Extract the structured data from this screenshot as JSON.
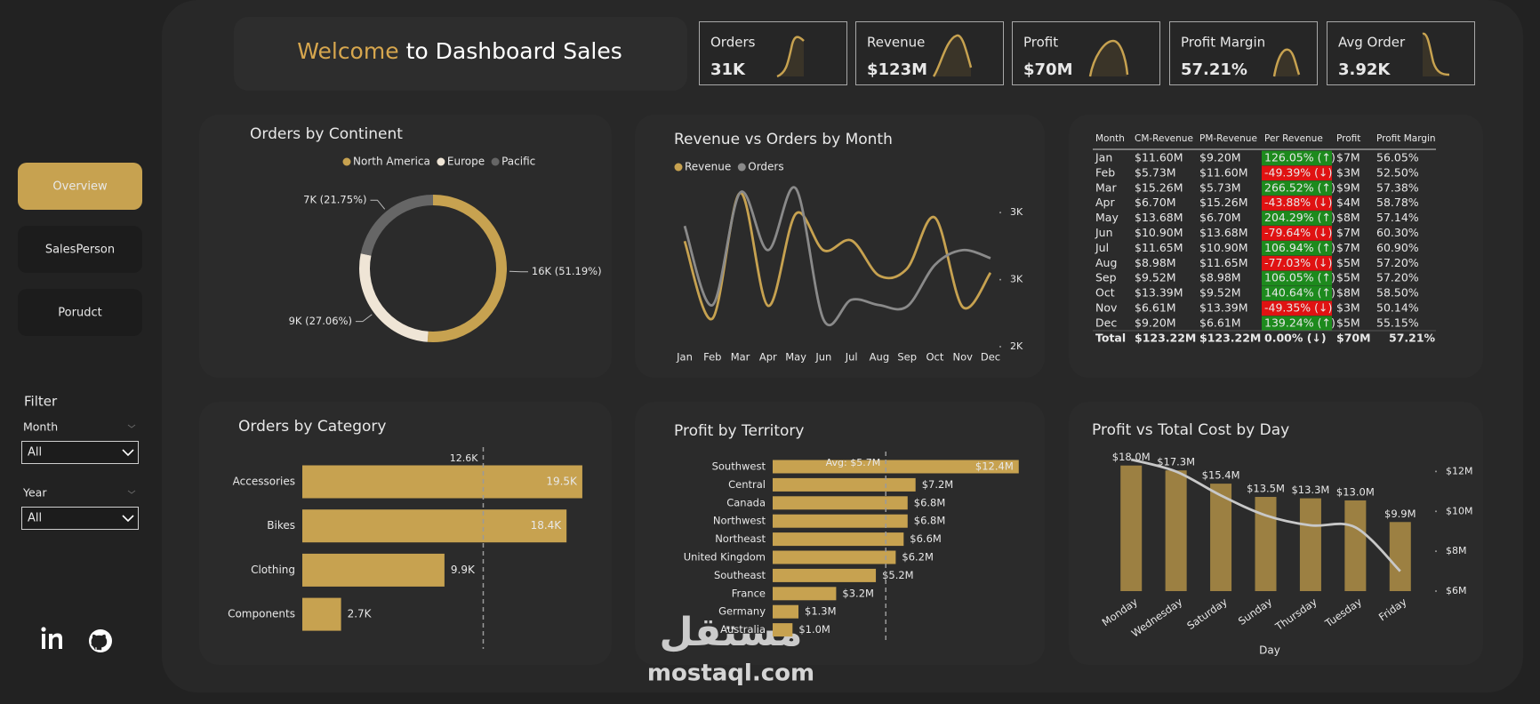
{
  "header": {
    "title_accent": "Welcome",
    "title_rest": "to Dashboard Sales"
  },
  "kpis": [
    {
      "label": "Orders",
      "value": "31K"
    },
    {
      "label": "Revenue",
      "value": "$123M"
    },
    {
      "label": "Profit",
      "value": "$70M"
    },
    {
      "label": "Profit Margin",
      "value": "57.21%"
    },
    {
      "label": "Avg Order",
      "value": "3.92K"
    }
  ],
  "nav": [
    "Overview",
    "SalesPerson",
    "Porudct"
  ],
  "filter": {
    "title": "Filter",
    "fields": [
      {
        "label": "Month",
        "selected": "All"
      },
      {
        "label": "Year",
        "selected": "All"
      }
    ]
  },
  "chart_data": [
    {
      "type": "pie",
      "donut": true,
      "title": "Orders by Continent",
      "categories": [
        "North America",
        "Europe",
        "Pacific"
      ],
      "values": [
        51.19,
        27.06,
        21.75
      ],
      "value_labels": [
        "16K (51.19%)",
        "9K (27.06%)",
        "7K (21.75%)"
      ],
      "colors": [
        "#c7a250",
        "#efe5d6",
        "#666666"
      ],
      "legend": "top"
    },
    {
      "type": "line",
      "title": "Revenue vs Orders by Month",
      "categories": [
        "Jan",
        "Feb",
        "Mar",
        "Apr",
        "May",
        "Jun",
        "Jul",
        "Aug",
        "Sep",
        "Oct",
        "Nov",
        "Dec"
      ],
      "series": [
        {
          "name": "Revenue",
          "color": "#c7a250",
          "axis": "y2",
          "values": [
            11.6,
            5.73,
            15.26,
            6.7,
            13.68,
            10.9,
            11.65,
            8.98,
            9.52,
            13.39,
            6.61,
            9.2
          ]
        },
        {
          "name": "Orders",
          "color": "#8a8a8a",
          "values": [
            2900,
            2310,
            3150,
            2720,
            3180,
            2200,
            2350,
            2310,
            2300,
            2610,
            2720,
            2660
          ]
        }
      ],
      "ylim": [
        2000,
        3200
      ],
      "yticks": [
        {
          "value": 2000,
          "label": "2K"
        },
        {
          "value": 2500,
          "label": "3K"
        },
        {
          "value": 3000,
          "label": "3K"
        }
      ],
      "y2lim": [
        3.6,
        15.8
      ],
      "legend": "top-left"
    },
    {
      "type": "hbar",
      "title": "Orders by Category",
      "categories": [
        "Accessories",
        "Bikes",
        "Clothing",
        "Components"
      ],
      "values": [
        19500,
        18400,
        9900,
        2700
      ],
      "value_labels": [
        "19.5K",
        "18.4K",
        "9.9K",
        "2.7K"
      ],
      "color": "#c7a250",
      "xlim": [
        0,
        20000
      ],
      "reference_line": {
        "value": 12600,
        "label": "12.6K"
      }
    },
    {
      "type": "hbar",
      "title": "Profit by Territory",
      "categories": [
        "Southwest",
        "Central",
        "Canada",
        "Northwest",
        "Northeast",
        "United Kingdom",
        "Southeast",
        "France",
        "Germany",
        "Australia"
      ],
      "values": [
        12.4,
        7.2,
        6.8,
        6.8,
        6.6,
        6.2,
        5.2,
        3.2,
        1.3,
        1.0
      ],
      "value_labels": [
        "$12.4M",
        "$7.2M",
        "$6.8M",
        "$6.8M",
        "$6.6M",
        "$6.2M",
        "$5.2M",
        "$3.2M",
        "$1.3M",
        "$1.0M"
      ],
      "color": "#c7a250",
      "xlim": [
        0,
        12.5
      ],
      "reference_line": {
        "value": 5.7,
        "label": "Avg: $5.7M"
      }
    },
    {
      "type": "combo",
      "title": "Profit vs Total Cost by Day",
      "x_label": "Day",
      "categories": [
        "Monday",
        "Wednesday",
        "Saturday",
        "Sunday",
        "Thursday",
        "Tuesday",
        "Friday"
      ],
      "series": [
        {
          "type": "bar",
          "color": "#9c8042",
          "values": [
            18.0,
            17.3,
            15.4,
            13.5,
            13.3,
            13.0,
            9.9
          ],
          "value_labels": [
            "$18.0M",
            "$17.3M",
            "$15.4M",
            "$13.5M",
            "$13.3M",
            "$13.0M",
            "$9.9M"
          ]
        },
        {
          "type": "line",
          "color": "#c8c8c8",
          "axis": "y2",
          "values": [
            12.6,
            12.0,
            10.8,
            9.8,
            9.3,
            9.2,
            7.0
          ]
        }
      ],
      "ylim": [
        0,
        20
      ],
      "y2lim": [
        6,
        13
      ],
      "y2ticks": [
        {
          "value": 6,
          "label": "$6M"
        },
        {
          "value": 8,
          "label": "$8M"
        },
        {
          "value": 10,
          "label": "$10M"
        },
        {
          "value": 12,
          "label": "$12M"
        }
      ]
    }
  ],
  "table": {
    "columns": [
      "Month",
      "CM-Revenue",
      "PM-Revenue",
      "Per Revenue",
      "Profit",
      "Profit Margin"
    ],
    "rows": [
      [
        "Jan",
        "$11.60M",
        "$9.20M",
        "126.05% (↑)",
        "$7M",
        "56.05%"
      ],
      [
        "Feb",
        "$5.73M",
        "$11.60M",
        "-49.39% (↓)",
        "$3M",
        "52.50%"
      ],
      [
        "Mar",
        "$15.26M",
        "$5.73M",
        "266.52% (↑)",
        "$9M",
        "57.38%"
      ],
      [
        "Apr",
        "$6.70M",
        "$15.26M",
        "-43.88% (↓)",
        "$4M",
        "58.78%"
      ],
      [
        "May",
        "$13.68M",
        "$6.70M",
        "204.29% (↑)",
        "$8M",
        "57.14%"
      ],
      [
        "Jun",
        "$10.90M",
        "$13.68M",
        "-79.64% (↓)",
        "$7M",
        "60.30%"
      ],
      [
        "Jul",
        "$11.65M",
        "$10.90M",
        "106.94% (↑)",
        "$7M",
        "60.90%"
      ],
      [
        "Aug",
        "$8.98M",
        "$11.65M",
        "-77.03% (↓)",
        "$5M",
        "57.20%"
      ],
      [
        "Sep",
        "$9.52M",
        "$8.98M",
        "106.05% (↑)",
        "$5M",
        "57.20%"
      ],
      [
        "Oct",
        "$13.39M",
        "$9.52M",
        "140.64% (↑)",
        "$8M",
        "58.50%"
      ],
      [
        "Nov",
        "$6.61M",
        "$13.39M",
        "-49.35% (↓)",
        "$3M",
        "50.14%"
      ],
      [
        "Dec",
        "$9.20M",
        "$6.61M",
        "139.24% (↑)",
        "$5M",
        "55.15%"
      ]
    ],
    "total": [
      "Total",
      "$123.22M",
      "$123.22M",
      "0.00% (↓)",
      "$70M",
      "57.21%"
    ]
  },
  "watermark": {
    "logo": "مستقل",
    "text": "mostaql.com"
  }
}
